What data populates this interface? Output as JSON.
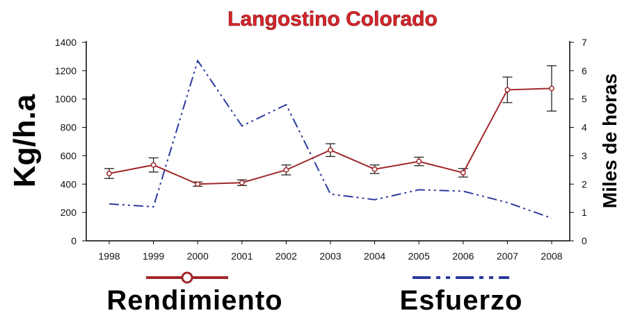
{
  "chart_data": {
    "type": "line",
    "title": "Langostino Colorado",
    "x": [
      "1998",
      "1999",
      "2000",
      "2001",
      "2002",
      "2003",
      "2004",
      "2005",
      "2006",
      "2007",
      "2008"
    ],
    "ylabel_left": "Kg/h.a",
    "ylabel_right": "Miles de horas",
    "ylim_left": [
      0,
      1400
    ],
    "yticks_left": [
      "0",
      "200",
      "400",
      "600",
      "800",
      "1000",
      "1200",
      "1400"
    ],
    "ylim_right": [
      0,
      7
    ],
    "yticks_right": [
      "0",
      "1",
      "2",
      "3",
      "4",
      "5",
      "6",
      "7"
    ],
    "grid": false,
    "legend_position": "bottom",
    "series": [
      {
        "name": "Rendimiento",
        "axis": "left",
        "color": "#a0262a",
        "style": "solid-with-open-circle-markers",
        "values": [
          475,
          535,
          400,
          410,
          500,
          640,
          505,
          560,
          480,
          1065,
          1075
        ],
        "error": [
          35,
          50,
          15,
          20,
          35,
          45,
          30,
          30,
          30,
          90,
          160
        ]
      },
      {
        "name": "Esfuerzo",
        "axis": "right",
        "color": "#2b3a9e",
        "style": "dash-dot",
        "values": [
          1.3,
          1.2,
          6.35,
          4.05,
          4.8,
          1.65,
          1.45,
          1.8,
          1.75,
          1.35,
          0.8
        ]
      }
    ]
  }
}
